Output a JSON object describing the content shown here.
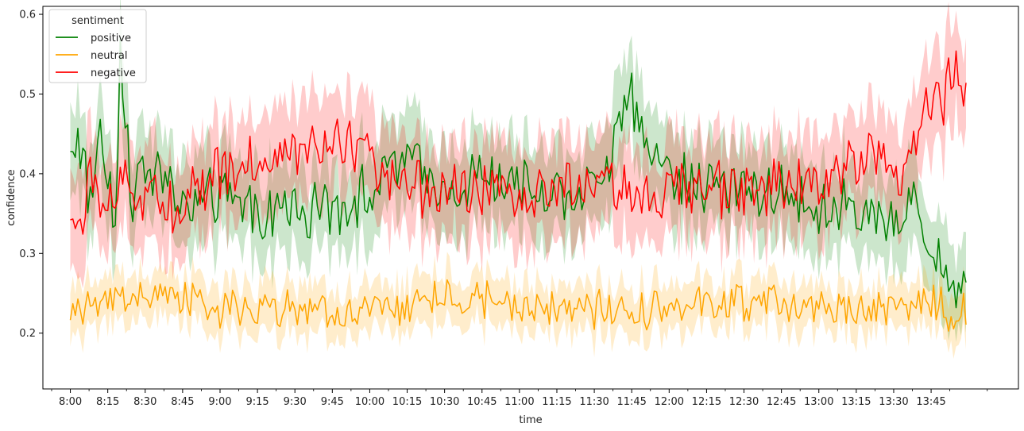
{
  "chart_data": {
    "type": "line",
    "title": "",
    "xlabel": "time",
    "ylabel": "confidence",
    "ylim": [
      0.13,
      0.61
    ],
    "xlim_minutes": [
      -11,
      380
    ],
    "x_start": "8:00",
    "x_end": "13:59",
    "x_step_minutes": 1,
    "x_ticks": [
      "8:00",
      "8:15",
      "8:30",
      "8:45",
      "9:00",
      "9:15",
      "9:30",
      "9:45",
      "10:00",
      "10:15",
      "10:30",
      "10:45",
      "11:00",
      "11:15",
      "11:30",
      "11:45",
      "12:00",
      "12:15",
      "12:30",
      "12:45",
      "13:00",
      "13:15",
      "13:30",
      "13:45"
    ],
    "y_ticks": [
      "0.2",
      "0.3",
      "0.4",
      "0.5",
      "0.6"
    ],
    "grid": false,
    "legend": {
      "title": "sentiment",
      "location": "top-left"
    },
    "series": [
      {
        "name": "positive",
        "color": "#008000",
        "band_color": "#008000",
        "mean_level": 0.375,
        "band_halfwidth": 0.055,
        "anchors": [
          [
            0,
            0.42
          ],
          [
            3,
            0.455
          ],
          [
            8,
            0.36
          ],
          [
            12,
            0.46
          ],
          [
            18,
            0.34
          ],
          [
            20,
            0.57
          ],
          [
            25,
            0.35
          ],
          [
            30,
            0.42
          ],
          [
            45,
            0.36
          ],
          [
            60,
            0.37
          ],
          [
            75,
            0.35
          ],
          [
            90,
            0.36
          ],
          [
            100,
            0.35
          ],
          [
            120,
            0.38
          ],
          [
            135,
            0.42
          ],
          [
            150,
            0.38
          ],
          [
            165,
            0.4
          ],
          [
            180,
            0.38
          ],
          [
            210,
            0.38
          ],
          [
            225,
            0.49
          ],
          [
            240,
            0.4
          ],
          [
            260,
            0.38
          ],
          [
            280,
            0.38
          ],
          [
            300,
            0.36
          ],
          [
            315,
            0.35
          ],
          [
            330,
            0.34
          ],
          [
            340,
            0.37
          ],
          [
            345,
            0.3
          ],
          [
            350,
            0.27
          ],
          [
            357,
            0.27
          ],
          [
            359,
            0.27
          ]
        ]
      },
      {
        "name": "neutral",
        "color": "#ffa500",
        "band_color": "#ffa500",
        "mean_level": 0.228,
        "band_halfwidth": 0.03,
        "anchors": [
          [
            0,
            0.23
          ],
          [
            30,
            0.25
          ],
          [
            60,
            0.23
          ],
          [
            90,
            0.23
          ],
          [
            120,
            0.22
          ],
          [
            150,
            0.25
          ],
          [
            180,
            0.23
          ],
          [
            210,
            0.23
          ],
          [
            240,
            0.23
          ],
          [
            270,
            0.24
          ],
          [
            300,
            0.23
          ],
          [
            330,
            0.23
          ],
          [
            345,
            0.24
          ],
          [
            355,
            0.22
          ],
          [
            359,
            0.23
          ]
        ]
      },
      {
        "name": "negative",
        "color": "#ff0000",
        "band_color": "#ff0000",
        "mean_level": 0.38,
        "band_halfwidth": 0.06,
        "anchors": [
          [
            0,
            0.345
          ],
          [
            5,
            0.32
          ],
          [
            8,
            0.43
          ],
          [
            12,
            0.35
          ],
          [
            20,
            0.38
          ],
          [
            40,
            0.36
          ],
          [
            60,
            0.4
          ],
          [
            75,
            0.42
          ],
          [
            90,
            0.42
          ],
          [
            105,
            0.44
          ],
          [
            118,
            0.43
          ],
          [
            125,
            0.38
          ],
          [
            150,
            0.38
          ],
          [
            180,
            0.38
          ],
          [
            210,
            0.38
          ],
          [
            240,
            0.38
          ],
          [
            270,
            0.38
          ],
          [
            300,
            0.39
          ],
          [
            320,
            0.43
          ],
          [
            333,
            0.4
          ],
          [
            340,
            0.45
          ],
          [
            345,
            0.5
          ],
          [
            350,
            0.49
          ],
          [
            354,
            0.535
          ],
          [
            357,
            0.52
          ],
          [
            359,
            0.5
          ]
        ]
      }
    ]
  }
}
